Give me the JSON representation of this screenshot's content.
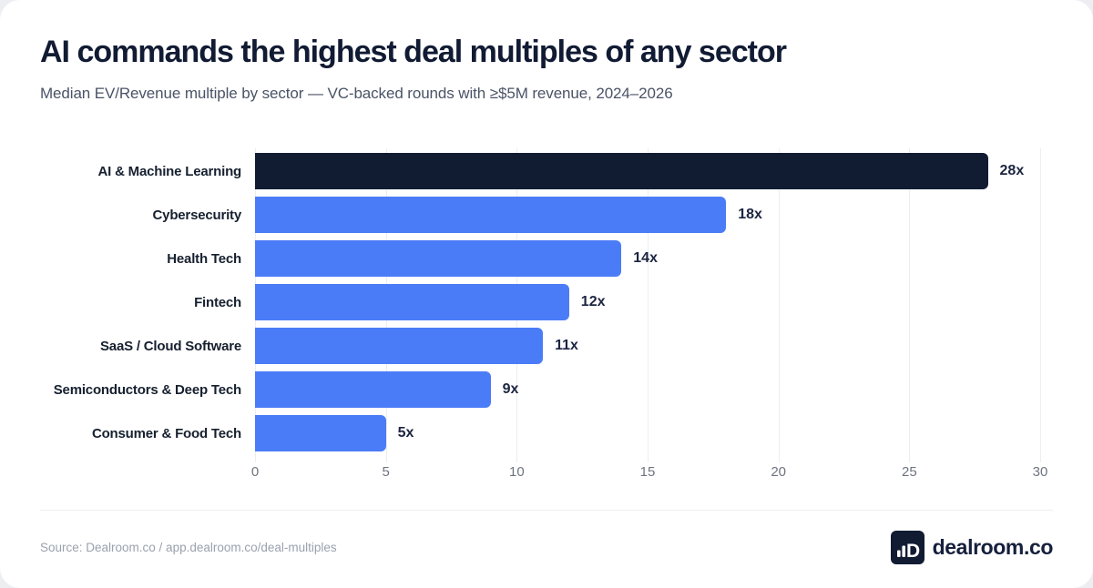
{
  "header": {
    "title": "AI commands the highest deal multiples of any sector",
    "subtitle": "Median EV/Revenue multiple by sector — VC-backed rounds with ≥$5M revenue, 2024–2026"
  },
  "chart_data": {
    "type": "bar",
    "orientation": "horizontal",
    "title": "AI commands the highest deal multiples of any sector",
    "subtitle": "Median EV/Revenue multiple by sector — VC-backed rounds with ≥$5M revenue, 2024–2026",
    "categories": [
      "AI & Machine Learning",
      "Cybersecurity",
      "Health Tech",
      "Fintech",
      "SaaS / Cloud Software",
      "Semiconductors & Deep Tech",
      "Consumer & Food Tech"
    ],
    "values": [
      28,
      18,
      14,
      12,
      11,
      9,
      5
    ],
    "value_labels": [
      "28x",
      "18x",
      "14x",
      "12x",
      "11x",
      "9x",
      "5x"
    ],
    "xlabel": "",
    "ylabel": "",
    "xlim": [
      0,
      30
    ],
    "xticks": [
      0,
      5,
      10,
      15,
      20,
      25,
      30
    ],
    "grid": true,
    "legend": false,
    "highlight_index": 0,
    "bar_color": "#4b7cf8",
    "highlight_color": "#111c33",
    "gridline_color": "#ebedf0"
  },
  "footer": {
    "source": "Source: Dealroom.co / app.dealroom.co/deal-multiples",
    "brand": "dealroom.co"
  },
  "colors": {
    "title_text": "#111b33",
    "subtitle_text": "#4a5366",
    "value_text": "#1c2540",
    "tick_text": "#6d7480",
    "card_bg": "#ffffff",
    "page_bg": "#eceef1"
  }
}
